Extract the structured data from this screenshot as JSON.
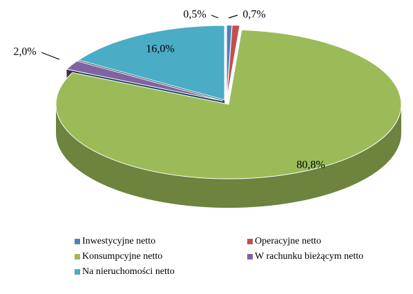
{
  "chart_data": {
    "type": "pie",
    "categories": [
      "Inwestycyjne netto",
      "Operacyjne netto",
      "Konsumpcyjne netto",
      "W rachunku bieżącym netto",
      "Na nieruchomości netto"
    ],
    "values": [
      0.5,
      0.7,
      80.8,
      2.0,
      16.0
    ],
    "value_labels": [
      "0,5%",
      "0,7%",
      "80,8%",
      "2,0%",
      "16,0%"
    ],
    "colors": [
      "#4f81bd",
      "#c0504d",
      "#9bbb59",
      "#8064a2",
      "#4bacc6"
    ]
  }
}
